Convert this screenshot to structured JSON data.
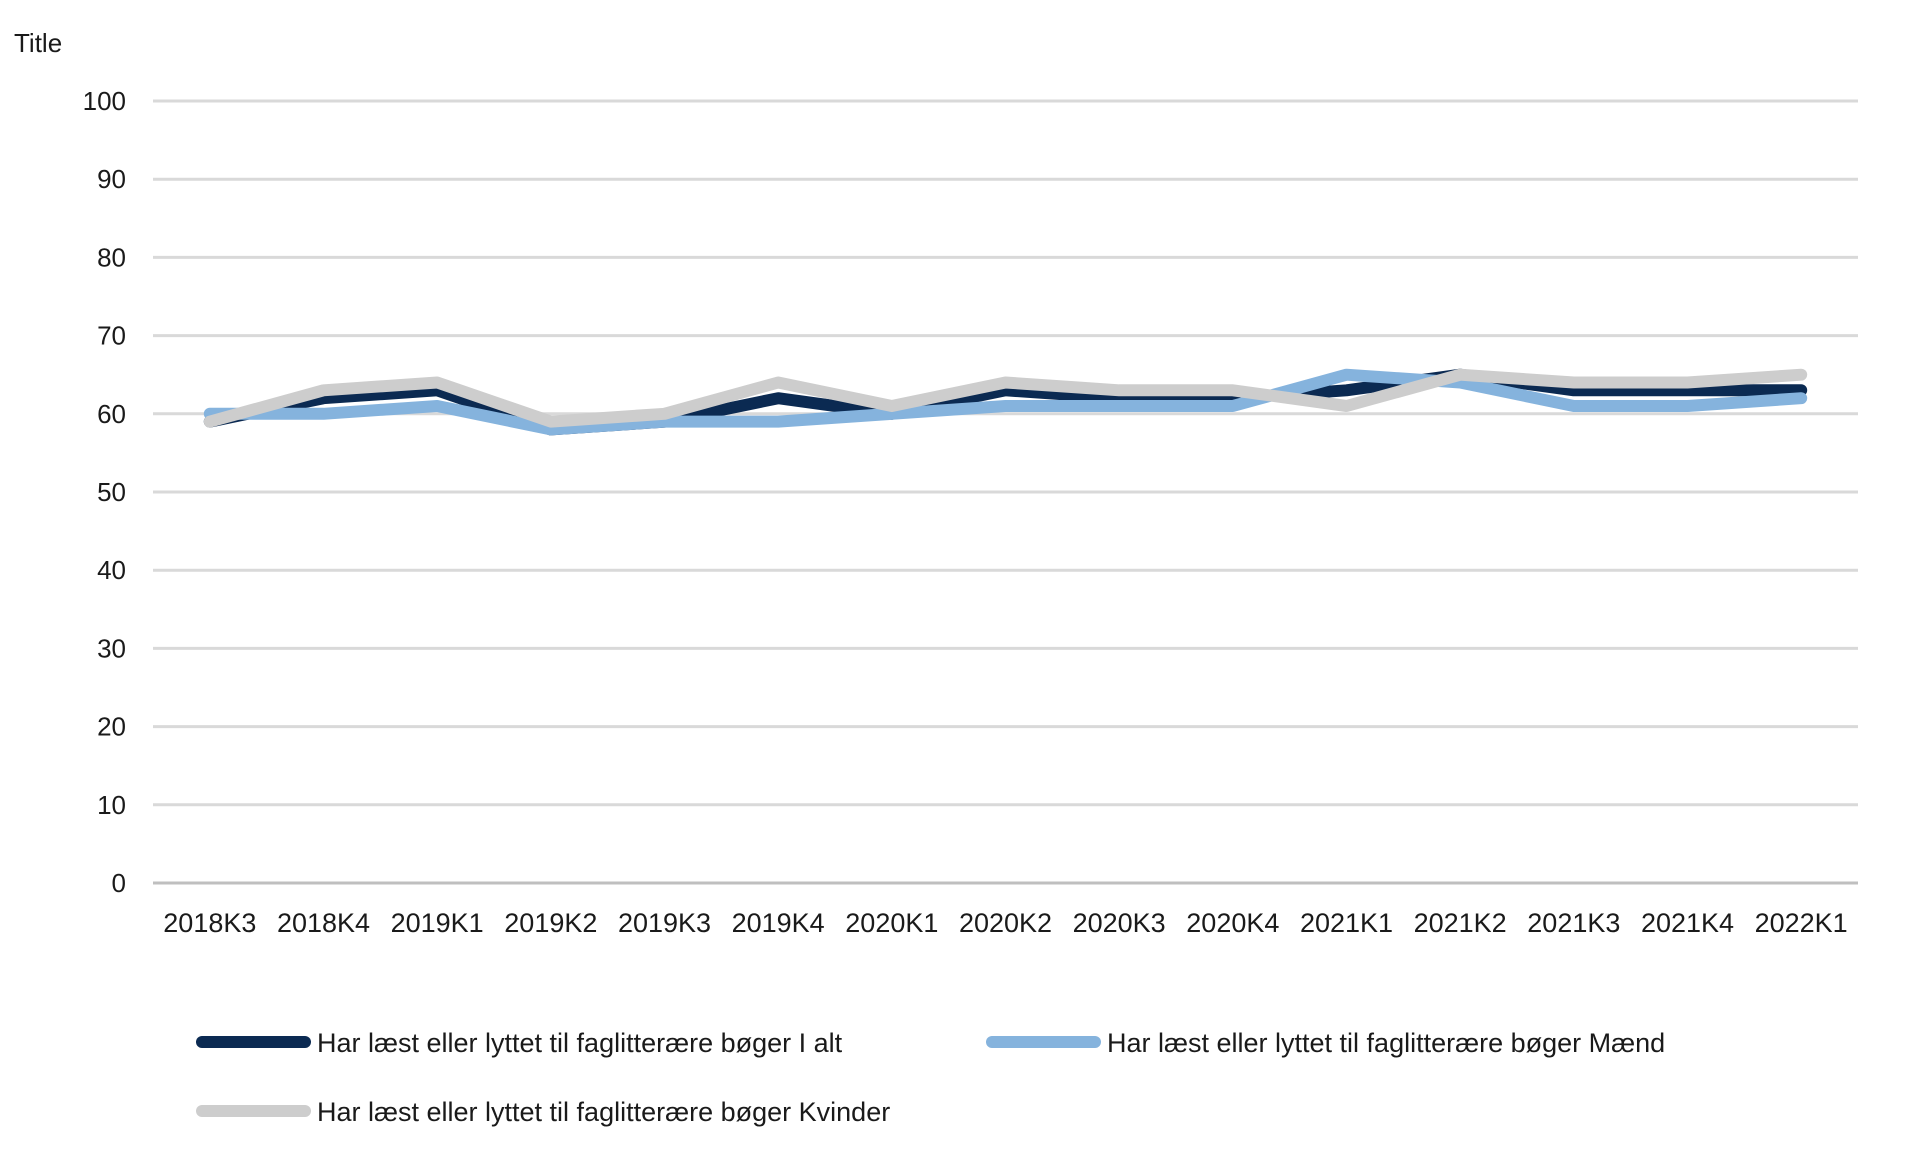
{
  "chart_data": {
    "type": "line",
    "title": "",
    "ylabel": "Title",
    "xlabel": "",
    "ylim": [
      0,
      100
    ],
    "yticks": [
      0,
      10,
      20,
      30,
      40,
      50,
      60,
      70,
      80,
      90,
      100
    ],
    "grid": true,
    "legend_position": "bottom",
    "categories": [
      "2018K3",
      "2018K4",
      "2019K1",
      "2019K2",
      "2019K3",
      "2019K4",
      "2020K1",
      "2020K2",
      "2020K3",
      "2020K4",
      "2021K1",
      "2021K2",
      "2021K3",
      "2021K4",
      "2022K1"
    ],
    "series": [
      {
        "name": "Har læst eller lyttet til faglitterære bøger I alt",
        "color": "#0b2a52",
        "values": [
          59,
          62,
          63,
          58,
          59,
          62,
          60,
          63,
          62,
          62,
          63,
          65,
          63,
          63,
          63
        ]
      },
      {
        "name": "Har læst eller lyttet til faglitterære bøger Mænd",
        "color": "#85b3dd",
        "values": [
          60,
          60,
          61,
          58,
          59,
          59,
          60,
          61,
          61,
          61,
          65,
          64,
          61,
          61,
          62
        ]
      },
      {
        "name": "Har læst eller lyttet til faglitterære bøger Kvinder",
        "color": "#cdcdcd",
        "values": [
          59,
          63,
          64,
          59,
          60,
          64,
          61,
          64,
          63,
          63,
          61,
          65,
          64,
          64,
          65
        ]
      }
    ]
  }
}
